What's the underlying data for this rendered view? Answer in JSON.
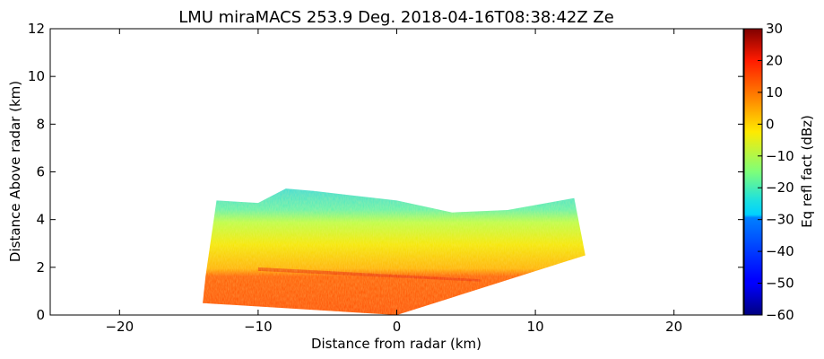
{
  "chart_data": {
    "type": "heatmap",
    "title": "LMU miraMACS 253.9 Deg. 2018-04-16T08:38:42Z  Ze",
    "xlabel": "Distance from radar (km)",
    "ylabel": "Distance Above radar  (km)",
    "xlim": [
      -25,
      25
    ],
    "ylim": [
      0,
      12
    ],
    "xticks": [
      -20,
      -10,
      0,
      10,
      20
    ],
    "xtick_labels": [
      "−20",
      "−10",
      "0",
      "10",
      "20"
    ],
    "yticks": [
      0,
      2,
      4,
      6,
      8,
      10,
      12
    ],
    "ytick_labels": [
      "0",
      "2",
      "4",
      "6",
      "8",
      "10",
      "12"
    ],
    "colorbar": {
      "label": "Eq refl fact (dBz)",
      "range": [
        -60,
        30
      ],
      "ticks": [
        30,
        20,
        10,
        0,
        -10,
        -20,
        -30,
        -40,
        -50,
        -60
      ],
      "tick_labels": [
        "30",
        "20",
        "10",
        "0",
        "−10",
        "−20",
        "−30",
        "−40",
        "−50",
        "−60"
      ],
      "colormap": "jet"
    },
    "scan": {
      "left_edge": [
        [
          -14,
          0.5
        ],
        [
          -13.8,
          1.6
        ],
        [
          -13,
          4.8
        ]
      ],
      "top_edge": [
        [
          -13,
          4.8
        ],
        [
          -10,
          4.7
        ],
        [
          -8,
          5.3
        ],
        [
          -6,
          5.2
        ],
        [
          -3,
          5.0
        ],
        [
          0,
          4.8
        ],
        [
          4,
          4.3
        ],
        [
          8,
          4.4
        ],
        [
          12.8,
          4.9
        ]
      ],
      "right_edge": [
        [
          12.8,
          4.9
        ],
        [
          13.6,
          2.5
        ]
      ],
      "bottom_edge": [
        [
          13.6,
          2.5
        ],
        [
          0,
          0
        ]
      ],
      "echo_layers": [
        {
          "name": "",
          "from_km": 0,
          "to_km": 2.0,
          "ze_dbz": 22
        },
        {
          "name": "",
          "from_km": 2.0,
          "to_km": 3.3,
          "ze_dbz": 8
        },
        {
          "name": "",
          "from_km": 3.3,
          "to_km": 4.2,
          "ze_dbz": -8
        },
        {
          "name": "",
          "from_km": 4.2,
          "to_km": 5.3,
          "ze_dbz": -25
        }
      ]
    }
  }
}
